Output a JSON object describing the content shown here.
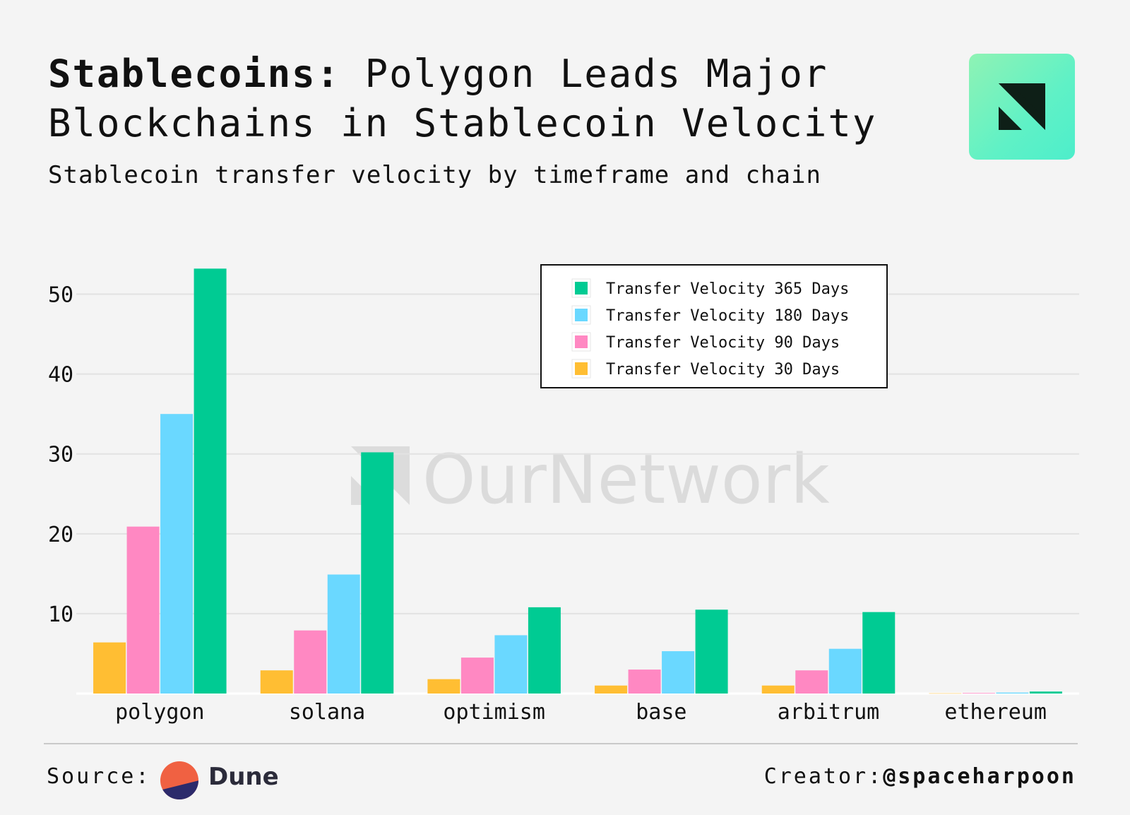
{
  "header": {
    "title_bold": "Stablecoins:",
    "title_rest": " Polygon Leads Major Blockchains in Stablecoin Velocity",
    "subtitle": "Stablecoin transfer velocity by timeframe and chain"
  },
  "watermark": "OurNetwork",
  "footer": {
    "source_label": "Source:",
    "source_name": "Dune",
    "creator_label": "Creator:",
    "creator_handle": "@spaceharpoon"
  },
  "chart_data": {
    "type": "bar",
    "categories": [
      "polygon",
      "solana",
      "optimism",
      "base",
      "arbitrum",
      "ethereum"
    ],
    "series": [
      {
        "name": "Transfer Velocity 30 Days",
        "color": "#ffbe33",
        "values": [
          6.4,
          2.9,
          1.8,
          1.0,
          1.0,
          0.03
        ]
      },
      {
        "name": "Transfer Velocity 90 Days",
        "color": "#ff88c2",
        "values": [
          20.9,
          7.9,
          4.5,
          3.0,
          2.9,
          0.07
        ]
      },
      {
        "name": "Transfer Velocity 180 Days",
        "color": "#6ad8ff",
        "values": [
          35.0,
          14.9,
          7.3,
          5.3,
          5.6,
          0.12
        ]
      },
      {
        "name": "Transfer Velocity 365 Days",
        "color": "#00cb93",
        "values": [
          53.2,
          30.2,
          10.8,
          10.5,
          10.2,
          0.25
        ]
      }
    ],
    "legend_order": [
      3,
      2,
      1,
      0
    ],
    "yticks": [
      10,
      20,
      30,
      40,
      50
    ],
    "ylim": [
      0,
      55
    ],
    "grid": true,
    "legend_position": "top-right"
  }
}
